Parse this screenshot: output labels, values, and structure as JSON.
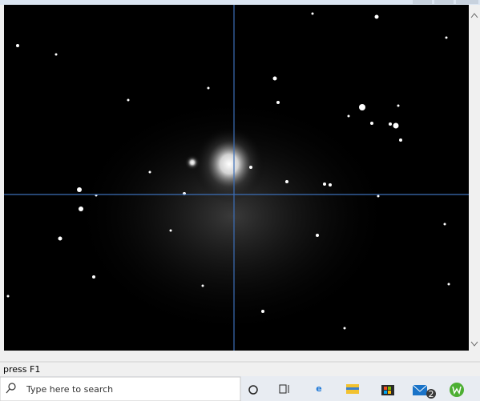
{
  "status_bar": {
    "text": "press F1"
  },
  "taskbar": {
    "search_placeholder": "Type here to search",
    "mail_badge": "2"
  }
}
